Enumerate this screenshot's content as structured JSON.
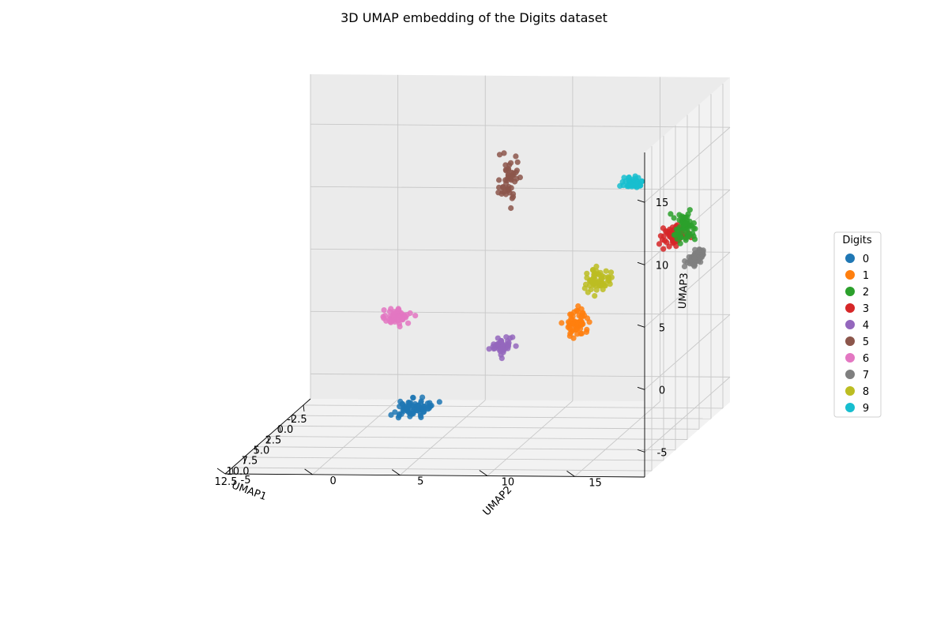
{
  "chart_data": {
    "type": "scatter",
    "dimensions": 3,
    "title": "3D UMAP embedding of the Digits dataset",
    "xlabel": "UMAP1",
    "ylabel": "UMAP2",
    "zlabel": "UMAP3",
    "xlim": [
      -4,
      14
    ],
    "ylim": [
      -5,
      19
    ],
    "zlim": [
      -7,
      19
    ],
    "x_ticks": [
      "-2.5",
      "0.0",
      "2.5",
      "5.0",
      "7.5",
      "10.0",
      "12.5"
    ],
    "x_tick_values": [
      -2.5,
      0,
      2.5,
      5,
      7.5,
      10,
      12.5
    ],
    "y_ticks": [
      "-5",
      "0",
      "5",
      "10",
      "15"
    ],
    "y_tick_values": [
      -5,
      0,
      5,
      10,
      15
    ],
    "z_ticks": [
      "-5",
      "0",
      "5",
      "10",
      "15"
    ],
    "z_tick_values": [
      -5,
      0,
      5,
      10,
      15
    ],
    "grid": true,
    "legend": {
      "title": "Digits",
      "placement": "right"
    },
    "series": [
      {
        "name": "0",
        "color": "#1f77b4",
        "center": [
          13.0,
          5.5,
          -2.0
        ],
        "spread": [
          0.5,
          0.5,
          0.3
        ],
        "count": 70
      },
      {
        "name": "1",
        "color": "#ff7f0e",
        "center": [
          4.1,
          12.5,
          2.0
        ],
        "spread": [
          0.25,
          0.3,
          0.7
        ],
        "count": 60
      },
      {
        "name": "2",
        "color": "#2ca02c",
        "center": [
          1.8,
          18.0,
          9.0
        ],
        "spread": [
          0.3,
          0.3,
          0.6
        ],
        "count": 60
      },
      {
        "name": "3",
        "color": "#d62728",
        "center": [
          -0.4,
          16.8,
          7.5
        ],
        "spread": [
          0.4,
          0.3,
          0.4
        ],
        "count": 70
      },
      {
        "name": "4",
        "color": "#9467bd",
        "center": [
          7.0,
          9.0,
          1.0
        ],
        "spread": [
          0.4,
          0.3,
          0.3
        ],
        "count": 50
      },
      {
        "name": "5",
        "color": "#8c564b",
        "center": [
          -3.3,
          6.5,
          11.0
        ],
        "spread": [
          0.25,
          0.25,
          0.9
        ],
        "count": 50
      },
      {
        "name": "6",
        "color": "#e377c2",
        "center": [
          1.6,
          1.5,
          1.5
        ],
        "spread": [
          0.4,
          0.3,
          0.3
        ],
        "count": 60
      },
      {
        "name": "7",
        "color": "#7f7f7f",
        "center": [
          3.0,
          19.0,
          7.0
        ],
        "spread": [
          0.9,
          0.15,
          0.2
        ],
        "count": 60
      },
      {
        "name": "8",
        "color": "#bcbd22",
        "center": [
          1.5,
          13.0,
          4.5
        ],
        "spread": [
          0.5,
          0.4,
          0.4
        ],
        "count": 60
      },
      {
        "name": "9",
        "color": "#17becf",
        "center": [
          -4.0,
          13.5,
          10.5
        ],
        "spread": [
          0.4,
          0.3,
          0.2
        ],
        "count": 50
      }
    ]
  }
}
